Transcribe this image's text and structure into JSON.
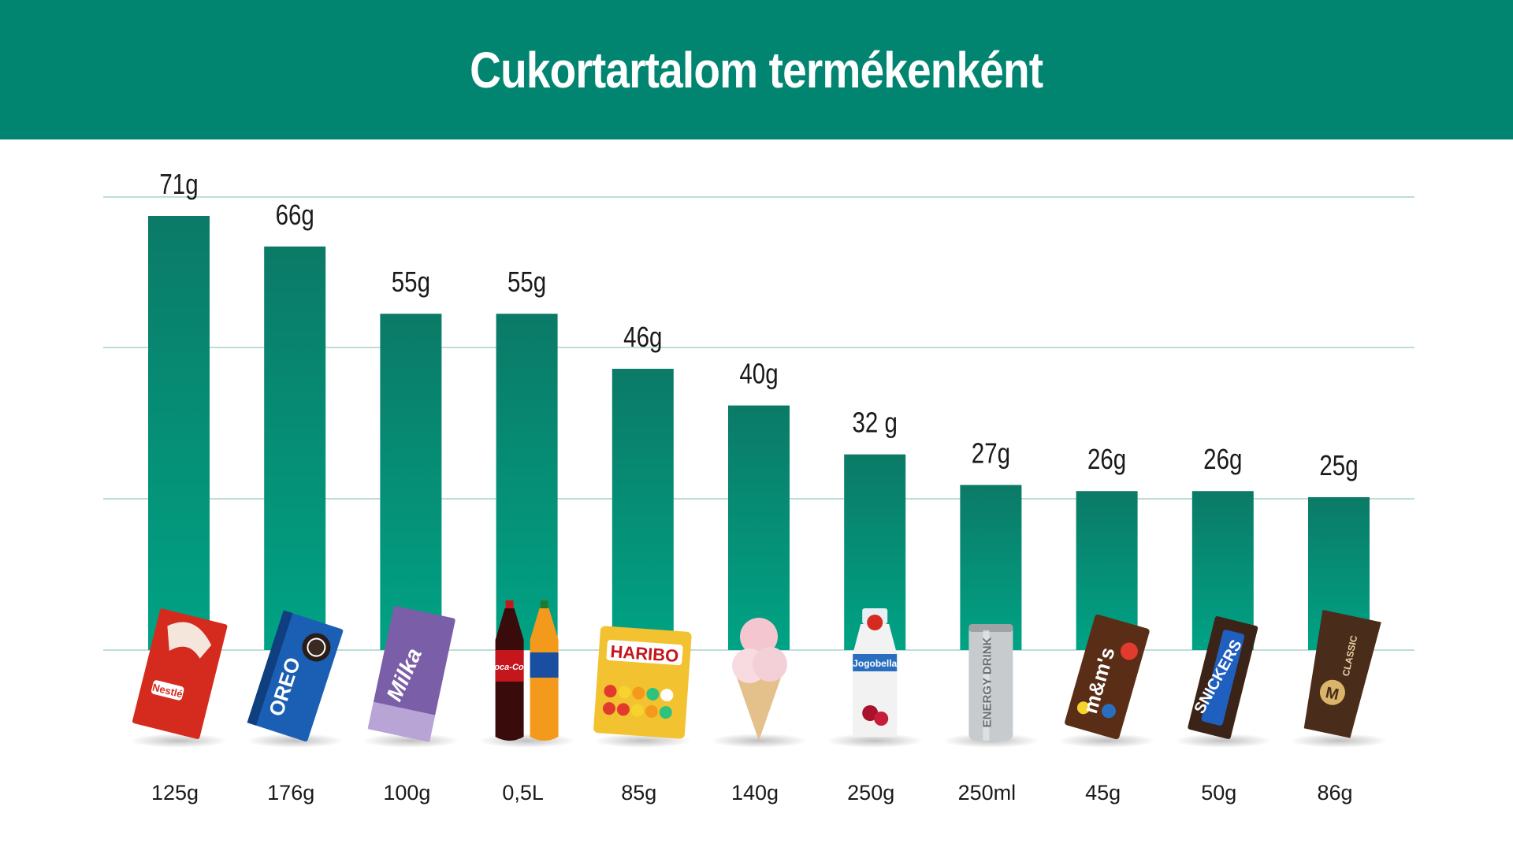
{
  "header": {
    "title": "Cukortartalom termékenként"
  },
  "colors": {
    "header_bg": "#018571",
    "bar_top": "#0b7a67",
    "bar_bottom": "#00a385",
    "grid": "#a9d2c8"
  },
  "chart_data": {
    "type": "bar",
    "title": "Cukortartalom termékenként",
    "xlabel": "",
    "ylabel": "",
    "ylim": [
      0,
      71
    ],
    "grid": true,
    "categories": [
      "125g",
      "176g",
      "100g",
      "0,5L",
      "85g",
      "140g",
      "250g",
      "250ml",
      "45g",
      "50g",
      "86g"
    ],
    "values": [
      71,
      66,
      55,
      55,
      46,
      40,
      32,
      27,
      26,
      26,
      25
    ],
    "value_labels": [
      "71g",
      "66g",
      "55g",
      "55g",
      "46g",
      "40g",
      "32 g",
      "27g",
      "26g",
      "26g",
      "25g"
    ],
    "products": [
      {
        "icon": "nestle-chocolate-bar-icon",
        "text": "Nestlé",
        "color": "#d52b1e"
      },
      {
        "icon": "oreo-box-icon",
        "text": "OREO",
        "color": "#1a5fb4"
      },
      {
        "icon": "milka-chocolate-icon",
        "text": "Milka",
        "color": "#7a5ea8"
      },
      {
        "icon": "soda-bottles-icon",
        "text": "Coca-Cola",
        "color": "#c4161c"
      },
      {
        "icon": "haribo-goldbaren-icon",
        "text": "HARIBO",
        "color": "#f2c230"
      },
      {
        "icon": "ice-cream-cone-icon",
        "text": "",
        "color": "#f4c6cf"
      },
      {
        "icon": "yogurt-drink-bottle-icon",
        "text": "Jogobella",
        "color": "#f2f2f2"
      },
      {
        "icon": "energy-drink-can-icon",
        "text": "ENERGY DRINK",
        "color": "#c8cbcd"
      },
      {
        "icon": "mms-pack-icon",
        "text": "m&m's",
        "color": "#5a2d16"
      },
      {
        "icon": "snickers-bar-icon",
        "text": "SNICKERS",
        "color": "#3b2417"
      },
      {
        "icon": "magnum-ice-cream-icon",
        "text": "CLASSIC",
        "color": "#4a2c1a"
      }
    ]
  }
}
